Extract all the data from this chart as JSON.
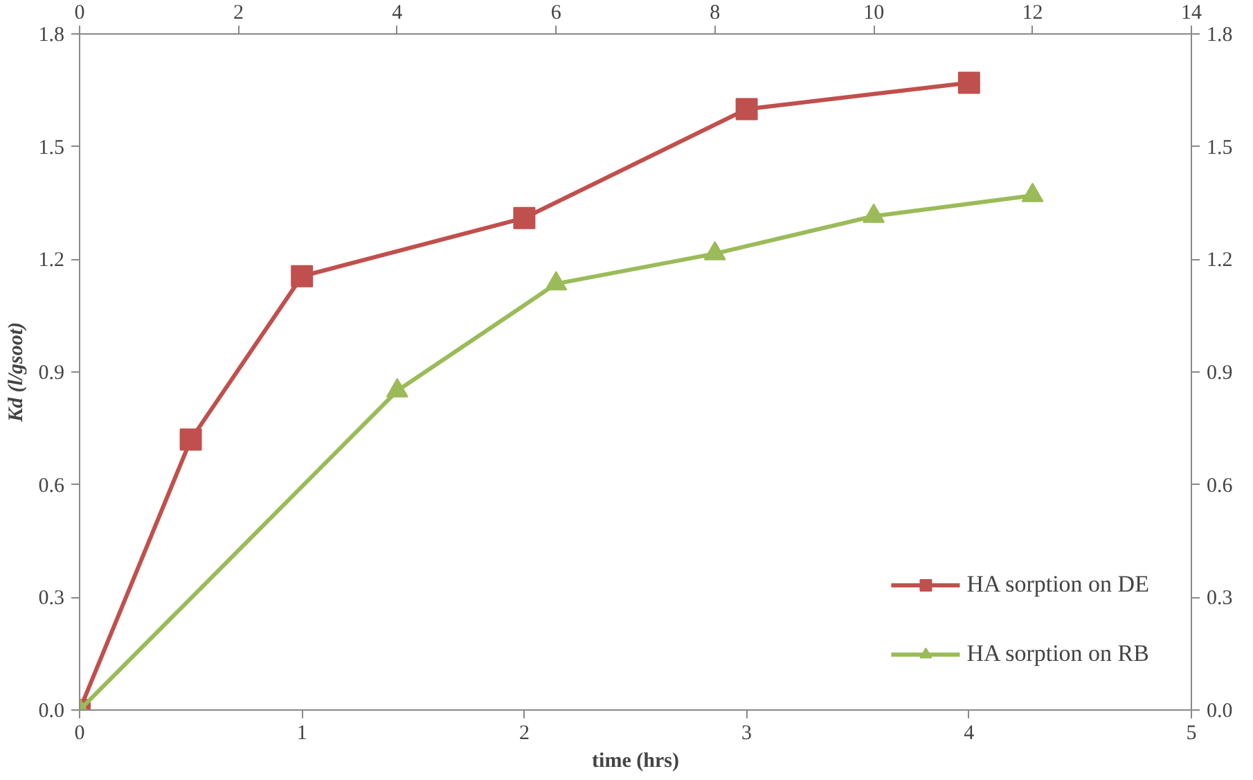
{
  "chart_data": {
    "type": "line",
    "xlabel": "time (hrs)",
    "ylabel": "Kd (l/gsoot)",
    "xlim": [
      0,
      5
    ],
    "xticks": [
      0,
      1,
      2,
      3,
      4,
      5
    ],
    "x2lim": [
      0,
      14
    ],
    "x2ticks": [
      0,
      2,
      4,
      6,
      8,
      10,
      12,
      14
    ],
    "ylim": [
      0,
      1.8
    ],
    "yticks": [
      {
        "value": 0,
        "label": "0.0"
      },
      {
        "value": 0.3,
        "label": "0.3"
      },
      {
        "value": 0.6,
        "label": "0.6"
      },
      {
        "value": 0.9,
        "label": "0.9"
      },
      {
        "value": 1.2,
        "label": "1.2"
      },
      {
        "value": 1.5,
        "label": "1.5"
      },
      {
        "value": 1.8,
        "label": "1.8"
      }
    ],
    "y2lim": [
      0,
      1.8
    ],
    "y2ticks": [
      {
        "value": 0,
        "label": "0.0"
      },
      {
        "value": 0.3,
        "label": "0.3"
      },
      {
        "value": 0.6,
        "label": "0.6"
      },
      {
        "value": 0.9,
        "label": "0.9"
      },
      {
        "value": 1.2,
        "label": "1.2"
      },
      {
        "value": 1.5,
        "label": "1.5"
      },
      {
        "value": 1.8,
        "label": "1.8"
      }
    ],
    "grid": false,
    "legend": "bottom right",
    "series": [
      {
        "name": "HA sorption on DE",
        "color": "#c0504d",
        "marker": "square",
        "x": [
          0,
          0.5,
          1,
          2,
          3,
          4
        ],
        "values": [
          0,
          0.72,
          1.155,
          1.31,
          1.6,
          1.67
        ]
      },
      {
        "name": "HA sorption on RB",
        "color": "#9bbb59",
        "marker": "triangle",
        "axis": "x2",
        "x": [
          0,
          4,
          6,
          8,
          10,
          12
        ],
        "values": [
          0,
          0.85,
          1.135,
          1.215,
          1.315,
          1.37
        ]
      }
    ]
  }
}
